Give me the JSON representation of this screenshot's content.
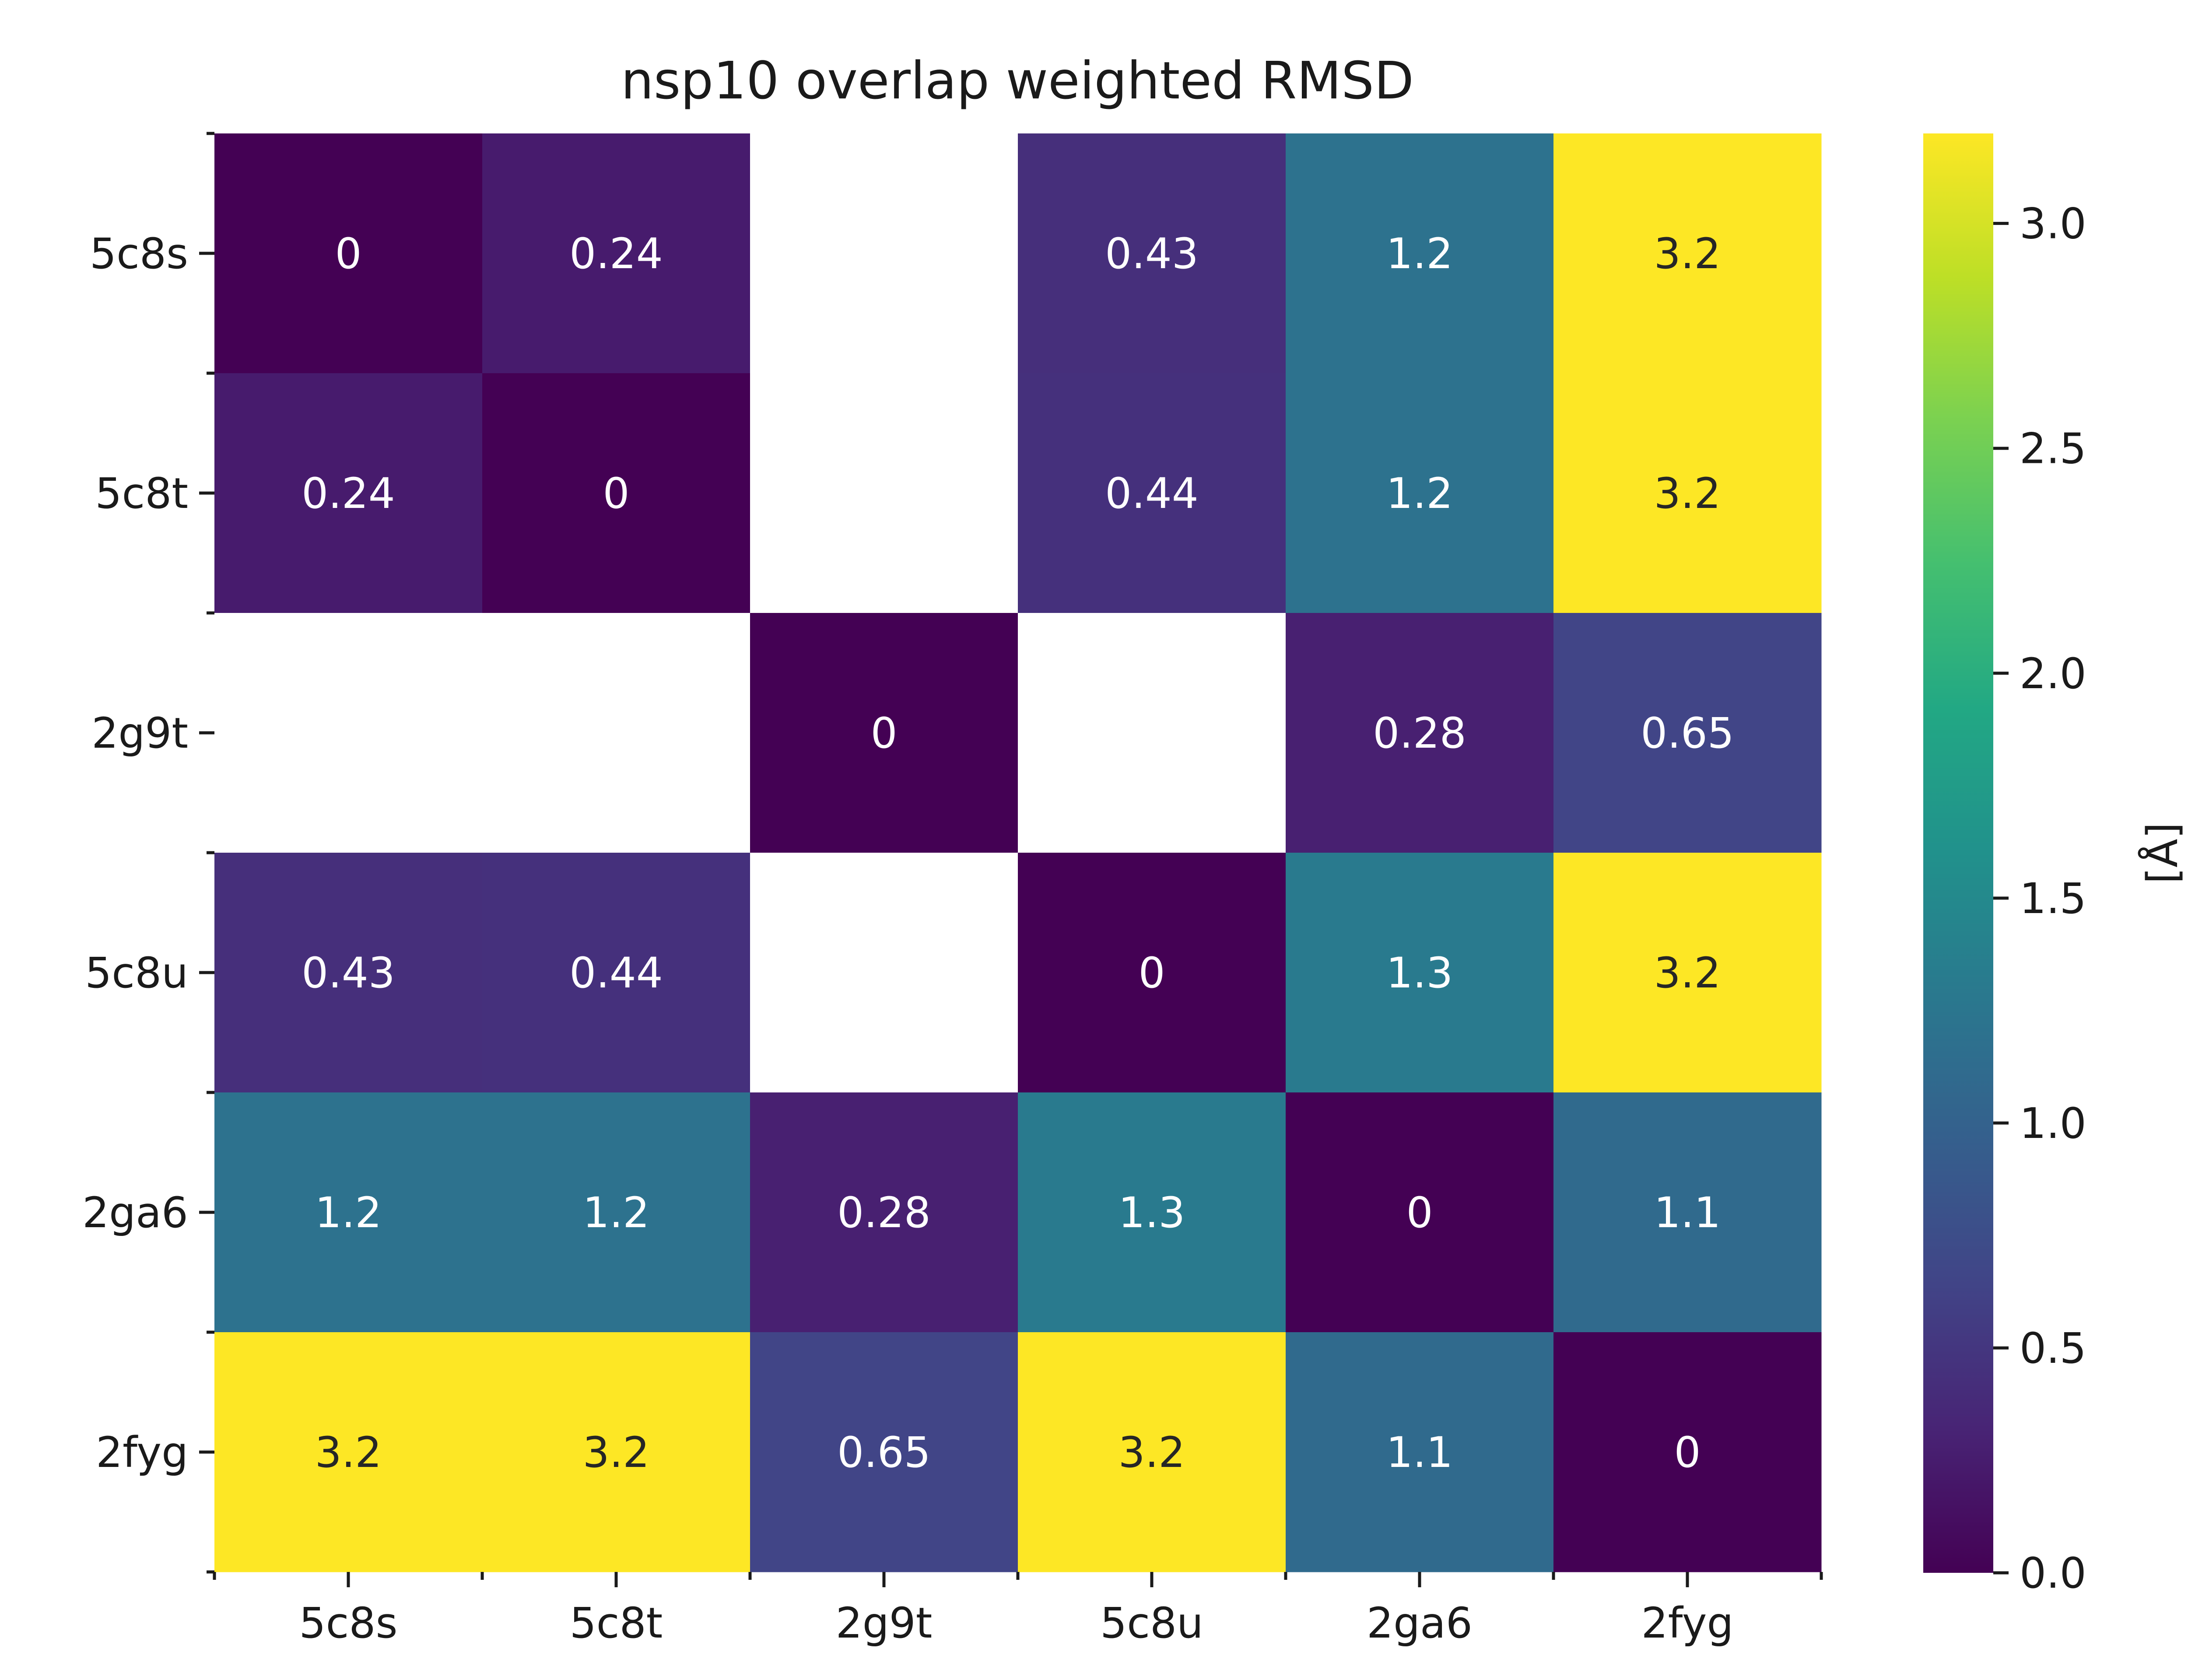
{
  "chart_data": {
    "type": "heatmap",
    "title": "nsp10 overlap weighted RMSD",
    "rows": [
      "5c8s",
      "5c8t",
      "2g9t",
      "5c8u",
      "2ga6",
      "2fyg"
    ],
    "cols": [
      "5c8s",
      "5c8t",
      "2g9t",
      "5c8u",
      "2ga6",
      "2fyg"
    ],
    "values": [
      [
        0,
        0.24,
        null,
        0.43,
        1.2,
        3.2
      ],
      [
        0.24,
        0,
        null,
        0.44,
        1.2,
        3.2
      ],
      [
        null,
        null,
        0,
        null,
        0.28,
        0.65
      ],
      [
        0.43,
        0.44,
        null,
        0,
        1.3,
        3.2
      ],
      [
        1.2,
        1.2,
        0.28,
        1.3,
        0,
        1.1
      ],
      [
        3.2,
        3.2,
        0.65,
        3.2,
        1.1,
        0
      ]
    ],
    "value_labels": [
      [
        "0",
        "0.24",
        "",
        "0.43",
        "1.2",
        "3.2"
      ],
      [
        "0.24",
        "0",
        "",
        "0.44",
        "1.2",
        "3.2"
      ],
      [
        "",
        "",
        "0",
        "",
        "0.28",
        "0.65"
      ],
      [
        "0.43",
        "0.44",
        "",
        "0",
        "1.3",
        "3.2"
      ],
      [
        "1.2",
        "1.2",
        "0.28",
        "1.3",
        "0",
        "1.1"
      ],
      [
        "3.2",
        "3.2",
        "0.65",
        "3.2",
        "1.1",
        "0"
      ]
    ],
    "colormap": "viridis",
    "vmin": 0,
    "vmax": 3.2,
    "colorbar": {
      "label": "[Å]",
      "ticks": [
        0.0,
        0.5,
        1.0,
        1.5,
        2.0,
        2.5,
        3.0
      ],
      "tick_labels": [
        "0.0",
        "0.5",
        "1.0",
        "1.5",
        "2.0",
        "2.5",
        "3.0"
      ]
    },
    "missing_color": "#ffffff"
  }
}
